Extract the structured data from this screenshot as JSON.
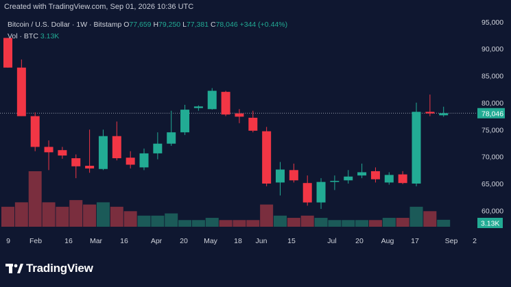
{
  "header": {
    "created_text": "Created with TradingView.com, Sep 01, 2026 10:36 UTC"
  },
  "legend": {
    "symbol": "Bitcoin / U.S. Dollar · 1W · Bitstamp",
    "o_label": "O",
    "o_value": "77,659",
    "h_label": "H",
    "h_value": "79,250",
    "l_label": "L",
    "l_value": "77,381",
    "c_label": "C",
    "c_value": "78,046",
    "change": "+344 (+0.44%)",
    "vol_label": "Vol · BTC",
    "vol_value": "3.13K"
  },
  "brand": {
    "name": "TradingView"
  },
  "colors": {
    "background": "#0f1730",
    "up": "#22ab94",
    "down": "#f23645",
    "vol_up": "#1b5a58",
    "vol_down": "#7a2e3e",
    "price_line": "#9aa0b0"
  },
  "chart_data": {
    "type": "candlestick",
    "title": "Bitcoin / U.S. Dollar",
    "interval": "1W",
    "exchange": "Bitstamp",
    "y_ticks": [
      "95,000",
      "90,000",
      "85,000",
      "80,000",
      "75,000",
      "70,000",
      "65,000",
      "60,000"
    ],
    "y_range": [
      57000,
      97000
    ],
    "x_ticks": [
      "9",
      "Feb",
      "16",
      "Mar",
      "16",
      "Apr",
      "20",
      "May",
      "18",
      "Jun",
      "15",
      "Jul",
      "20",
      "Aug",
      "17",
      "Sep",
      "2"
    ],
    "last_price_label": "78,046",
    "volume_label": "3.13K",
    "grid": false,
    "candles": [
      {
        "o": 92000,
        "h": 92000,
        "l": 86500,
        "c": 86500
      },
      {
        "o": 86500,
        "h": 88000,
        "l": 77500,
        "c": 77500
      },
      {
        "o": 77500,
        "h": 78200,
        "l": 71000,
        "c": 71800
      },
      {
        "o": 71800,
        "h": 73000,
        "l": 67500,
        "c": 70800
      },
      {
        "o": 71200,
        "h": 71800,
        "l": 69600,
        "c": 70200
      },
      {
        "o": 69700,
        "h": 70400,
        "l": 66000,
        "c": 68200
      },
      {
        "o": 68300,
        "h": 75000,
        "l": 67000,
        "c": 67800
      },
      {
        "o": 67700,
        "h": 75000,
        "l": 67500,
        "c": 73800
      },
      {
        "o": 73800,
        "h": 76500,
        "l": 69300,
        "c": 69700
      },
      {
        "o": 69800,
        "h": 71000,
        "l": 67800,
        "c": 68500
      },
      {
        "o": 68000,
        "h": 71500,
        "l": 67500,
        "c": 70600
      },
      {
        "o": 70600,
        "h": 74500,
        "l": 69500,
        "c": 72400
      },
      {
        "o": 72400,
        "h": 78500,
        "l": 72000,
        "c": 74500
      },
      {
        "o": 74500,
        "h": 79600,
        "l": 74000,
        "c": 78700
      },
      {
        "o": 79000,
        "h": 79500,
        "l": 78500,
        "c": 79300
      },
      {
        "o": 78800,
        "h": 82700,
        "l": 78700,
        "c": 82200
      },
      {
        "o": 82000,
        "h": 82200,
        "l": 77500,
        "c": 77800
      },
      {
        "o": 78000,
        "h": 78800,
        "l": 76200,
        "c": 77400
      },
      {
        "o": 77200,
        "h": 78500,
        "l": 74500,
        "c": 74800
      },
      {
        "o": 74700,
        "h": 75500,
        "l": 64500,
        "c": 65000
      },
      {
        "o": 65200,
        "h": 69000,
        "l": 62800,
        "c": 67600
      },
      {
        "o": 67500,
        "h": 68700,
        "l": 65200,
        "c": 65600
      },
      {
        "o": 65100,
        "h": 66500,
        "l": 60900,
        "c": 61500
      },
      {
        "o": 61500,
        "h": 66000,
        "l": 60300,
        "c": 65300
      },
      {
        "o": 65300,
        "h": 66500,
        "l": 63800,
        "c": 65500
      },
      {
        "o": 65600,
        "h": 67500,
        "l": 65000,
        "c": 66300
      },
      {
        "o": 66500,
        "h": 68700,
        "l": 66000,
        "c": 67100
      },
      {
        "o": 67300,
        "h": 68000,
        "l": 65200,
        "c": 65800
      },
      {
        "o": 65200,
        "h": 67100,
        "l": 64800,
        "c": 66600
      },
      {
        "o": 66700,
        "h": 67300,
        "l": 64900,
        "c": 65100
      },
      {
        "o": 65000,
        "h": 80000,
        "l": 64500,
        "c": 78300
      },
      {
        "o": 78300,
        "h": 81500,
        "l": 77500,
        "c": 78000
      },
      {
        "o": 77659,
        "h": 79250,
        "l": 77381,
        "c": 78046
      }
    ],
    "volumes_btc_k": [
      9,
      11,
      25,
      11,
      9,
      12,
      10,
      11,
      9,
      7,
      5,
      5,
      6,
      3,
      3,
      4,
      3,
      3,
      3,
      10,
      5,
      4,
      5,
      4,
      3,
      3,
      3,
      3,
      4,
      4,
      9,
      7,
      3.13
    ]
  }
}
